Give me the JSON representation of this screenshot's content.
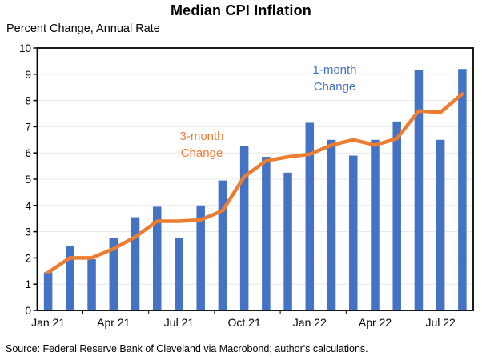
{
  "chart_data": {
    "type": "combo",
    "title": "Median CPI Inflation",
    "subtitle": "Percent Change, Annual Rate",
    "source": "Source: Federal Reserve Bank of Cleveland via Macrobond; author's calculations.",
    "categories": [
      "Jan 21",
      "Feb 21",
      "Mar 21",
      "Apr 21",
      "May 21",
      "Jun 21",
      "Jul 21",
      "Aug 21",
      "Sep 21",
      "Oct 21",
      "Nov 21",
      "Dec 21",
      "Jan 22",
      "Feb 22",
      "Mar 22",
      "Apr 22",
      "May 22",
      "Jun 22",
      "Jul 22",
      "Aug 22"
    ],
    "x_label_every": 3,
    "visible_x_labels": [
      "Jan 21",
      "Apr 21",
      "Jul 21",
      "Oct 21",
      "Jan 22",
      "Apr 22",
      "Jul 22"
    ],
    "series": [
      {
        "name": "1-month Change",
        "type": "bar",
        "color": "#4472C4",
        "values": [
          1.45,
          2.45,
          1.95,
          2.75,
          3.55,
          3.95,
          2.75,
          4.0,
          4.95,
          6.25,
          5.85,
          5.25,
          7.15,
          6.5,
          5.9,
          6.5,
          7.2,
          9.15,
          6.5,
          9.2
        ]
      },
      {
        "name": "3-month Change",
        "type": "line",
        "color": "#ED7D31",
        "values": [
          1.45,
          2.0,
          2.0,
          2.35,
          2.8,
          3.4,
          3.4,
          3.45,
          3.8,
          5.1,
          5.7,
          5.85,
          5.95,
          6.3,
          6.5,
          6.3,
          6.55,
          7.6,
          7.55,
          8.25
        ]
      }
    ],
    "ylim": [
      0,
      10
    ],
    "y_ticks": [
      0,
      1,
      2,
      3,
      4,
      5,
      6,
      7,
      8,
      9,
      10
    ],
    "grid": true,
    "gridline_color": "#E8E8E8",
    "frame_color": "#000000",
    "annotations": {
      "one_month": {
        "line1": "1-month",
        "line2": "Change",
        "color": "#4472C4"
      },
      "three_month": {
        "line1": "3-month",
        "line2": "Change",
        "color": "#ED7D31"
      }
    }
  }
}
